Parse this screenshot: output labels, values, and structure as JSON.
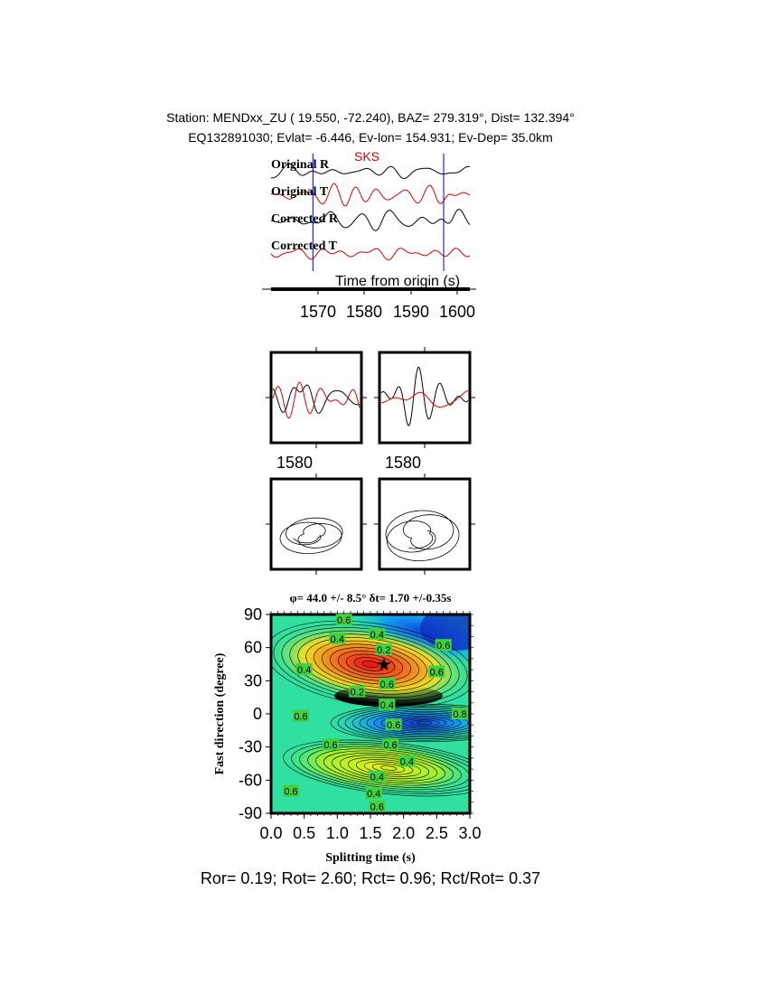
{
  "header": {
    "station_line": "Station: MENDxx_ZU (  19.550,  -72.240), BAZ=  279.319°, Dist=  132.394°",
    "event_line": "EQ132891030; Evlat=  -6.446, Ev-lon= 154.931; Ev-Dep= 35.0km"
  },
  "colors": {
    "radial": "#000000",
    "transverse": "#dd0000",
    "window_marker": "#0000cc",
    "phase_label": "#dd0000"
  },
  "chart_data": [
    {
      "type": "line",
      "panel": "traces",
      "phase_label": "SKS",
      "trace_labels": [
        "Original R",
        "Original T",
        "Corrected R",
        "Corrected T"
      ],
      "xlabel": "Time from origin (s)",
      "xticks": [
        "1570",
        "1580",
        "1590",
        "1600"
      ],
      "xlim": [
        1565,
        1603
      ],
      "window": [
        1573,
        1598
      ]
    },
    {
      "type": "line",
      "panel": "particle-window-waveforms",
      "xticks": [
        "1580",
        "1580"
      ]
    },
    {
      "type": "heatmap",
      "panel": "energy-grid",
      "title": "φ= 44.0 +/- 8.5° δt= 1.70 +/-0.35s",
      "xlabel": "Splitting time (s)",
      "ylabel": "Fast direction (degree)",
      "xlim": [
        0,
        3
      ],
      "ylim": [
        -90,
        90
      ],
      "xticks": [
        "0.0",
        "0.5",
        "1.0",
        "1.5",
        "2.0",
        "2.5",
        "3.0"
      ],
      "yticks": [
        "90",
        "60",
        "30",
        "0",
        "-30",
        "-60",
        "-90"
      ],
      "contour_labels": [
        "0.6",
        "0.4",
        "0.4",
        "0.2",
        "0.6",
        "0.6",
        "0.2",
        "0.4",
        "0.4",
        "0.6",
        "0.6",
        "0.8",
        "0.6",
        "0.4",
        "0.6",
        "0.4",
        "0.4",
        "0.6",
        "0.6",
        "0.6"
      ],
      "best_fit": {
        "dt": 1.7,
        "phi": 44.0
      }
    }
  ],
  "footer": {
    "ratios": "Ror= 0.19; Rot= 2.60; Rct= 0.96; Rct/Rot= 0.37"
  }
}
